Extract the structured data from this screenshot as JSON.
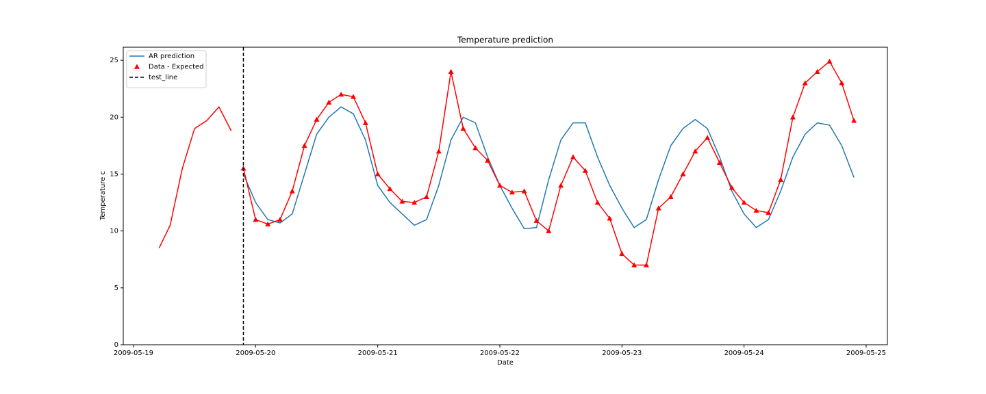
{
  "chart_data": {
    "type": "line",
    "title": "Temperature prediction",
    "xlabel": "Date",
    "ylabel": "Temperature c",
    "xlim": [
      -0.084,
      6.174
    ],
    "ylim": [
      0,
      26.15
    ],
    "xticks": [
      {
        "value": 0,
        "label": "2009-05-19"
      },
      {
        "value": 1,
        "label": "2009-05-20"
      },
      {
        "value": 2,
        "label": "2009-05-21"
      },
      {
        "value": 3,
        "label": "2009-05-22"
      },
      {
        "value": 4,
        "label": "2009-05-23"
      },
      {
        "value": 5,
        "label": "2009-05-24"
      },
      {
        "value": 6,
        "label": "2009-05-25"
      }
    ],
    "yticks": [
      0,
      5,
      10,
      15,
      20,
      25
    ],
    "legend": "upper left",
    "series": [
      {
        "name": "AR prediction",
        "color": "#1f77b4",
        "marker": "none",
        "x": [
          0.9,
          1.0,
          1.1,
          1.2,
          1.3,
          1.4,
          1.5,
          1.6,
          1.7,
          1.8,
          1.9,
          2.0,
          2.1,
          2.2,
          2.3,
          2.4,
          2.5,
          2.6,
          2.7,
          2.8,
          2.9,
          3.0,
          3.1,
          3.2,
          3.3,
          3.4,
          3.5,
          3.6,
          3.7,
          3.8,
          3.9,
          4.0,
          4.1,
          4.2,
          4.3,
          4.4,
          4.5,
          4.6,
          4.7,
          4.8,
          4.9,
          5.0,
          5.1,
          5.2,
          5.3,
          5.4,
          5.5,
          5.6,
          5.7,
          5.8,
          5.9
        ],
        "values": [
          15.0,
          12.5,
          11.0,
          10.7,
          11.5,
          15.0,
          18.5,
          20.0,
          20.9,
          20.3,
          18.0,
          14.0,
          12.5,
          11.5,
          10.5,
          11.0,
          14.0,
          18.0,
          20.0,
          19.5,
          16.5,
          14.0,
          12.0,
          10.2,
          10.3,
          14.5,
          18.0,
          19.5,
          19.5,
          16.5,
          14.0,
          12.0,
          10.3,
          11.0,
          14.5,
          17.5,
          19.0,
          19.8,
          19.0,
          16.5,
          13.5,
          11.5,
          10.3,
          11.0,
          13.5,
          16.5,
          18.5,
          19.5,
          19.3,
          17.5,
          14.7
        ]
      },
      {
        "name": "Data - Expected",
        "color": "#ff0000",
        "marker": "triangle",
        "x": [
          0.9,
          1.0,
          1.1,
          1.2,
          1.3,
          1.4,
          1.5,
          1.6,
          1.7,
          1.8,
          1.9,
          2.0,
          2.1,
          2.2,
          2.3,
          2.4,
          2.5,
          2.6,
          2.7,
          2.8,
          2.9,
          3.0,
          3.1,
          3.2,
          3.3,
          3.4,
          3.5,
          3.6,
          3.7,
          3.8,
          3.9,
          4.0,
          4.1,
          4.2,
          4.3,
          4.4,
          4.5,
          4.6,
          4.7,
          4.8,
          4.9,
          5.0,
          5.1,
          5.2,
          5.3,
          5.4,
          5.5,
          5.6,
          5.7,
          5.8,
          5.9
        ],
        "values": [
          15.5,
          11.0,
          10.6,
          11.0,
          13.5,
          17.5,
          19.8,
          21.3,
          22.0,
          21.8,
          19.5,
          15.0,
          13.7,
          12.6,
          12.5,
          13.0,
          17.0,
          24.0,
          19.0,
          17.3,
          16.2,
          14.0,
          13.4,
          13.5,
          10.9,
          10.0,
          14.0,
          16.5,
          15.3,
          12.5,
          11.1,
          8.0,
          7.0,
          7.0,
          12.0,
          13.0,
          15.0,
          17.0,
          18.2,
          16.0,
          13.8,
          12.5,
          11.8,
          11.6,
          14.5,
          20.0,
          23.0,
          24.0,
          24.9,
          23.0,
          19.7
        ]
      },
      {
        "color": "#ff0000",
        "marker": "none",
        "x": [
          0.21,
          0.3,
          0.4,
          0.5,
          0.6,
          0.7,
          0.8
        ],
        "values": [
          8.5,
          10.5,
          15.5,
          19.0,
          19.7,
          20.9,
          18.8
        ]
      }
    ],
    "vlines": [
      {
        "name": "test_line",
        "x": 0.9,
        "color": "#000000"
      }
    ]
  }
}
